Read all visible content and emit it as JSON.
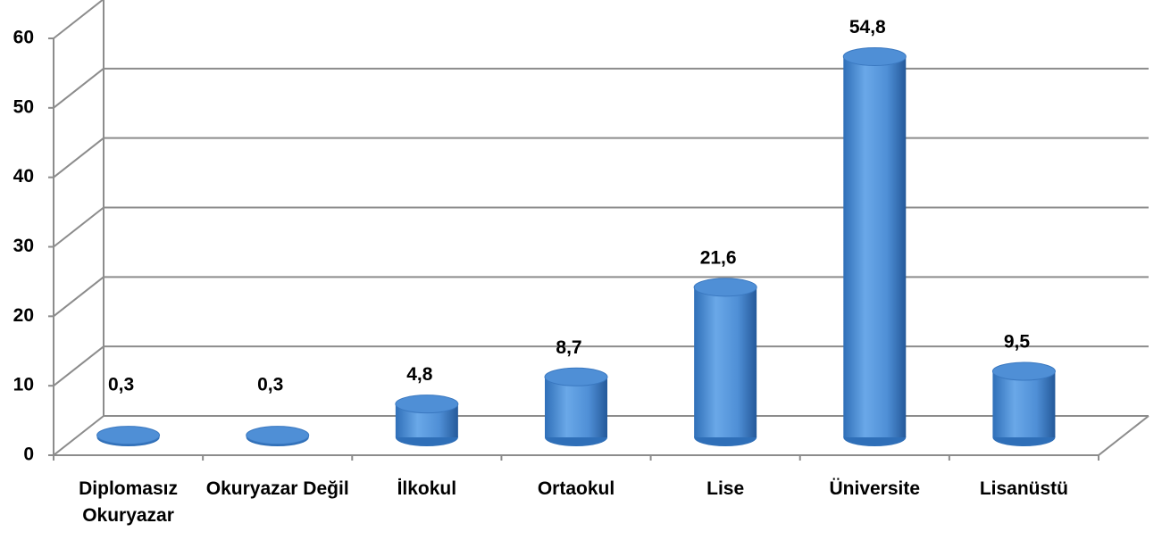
{
  "chart_data": {
    "type": "bar3d",
    "categories": [
      "Diplomasız Okuryazar",
      "Okuryazar Değil",
      "İlkokul",
      "Ortaokul",
      "Lise",
      "Üniversite",
      "Lisanüstü"
    ],
    "values": [
      0.3,
      0.3,
      4.8,
      8.7,
      21.6,
      54.8,
      9.5
    ],
    "value_labels": [
      "0,3",
      "0,3",
      "4,8",
      "8,7",
      "21,6",
      "54,8",
      "9,5"
    ],
    "color": "#4f8fd6",
    "ylim": [
      0,
      60
    ],
    "yticks": [
      0,
      10,
      20,
      30,
      40,
      50,
      60
    ],
    "grid": true
  }
}
